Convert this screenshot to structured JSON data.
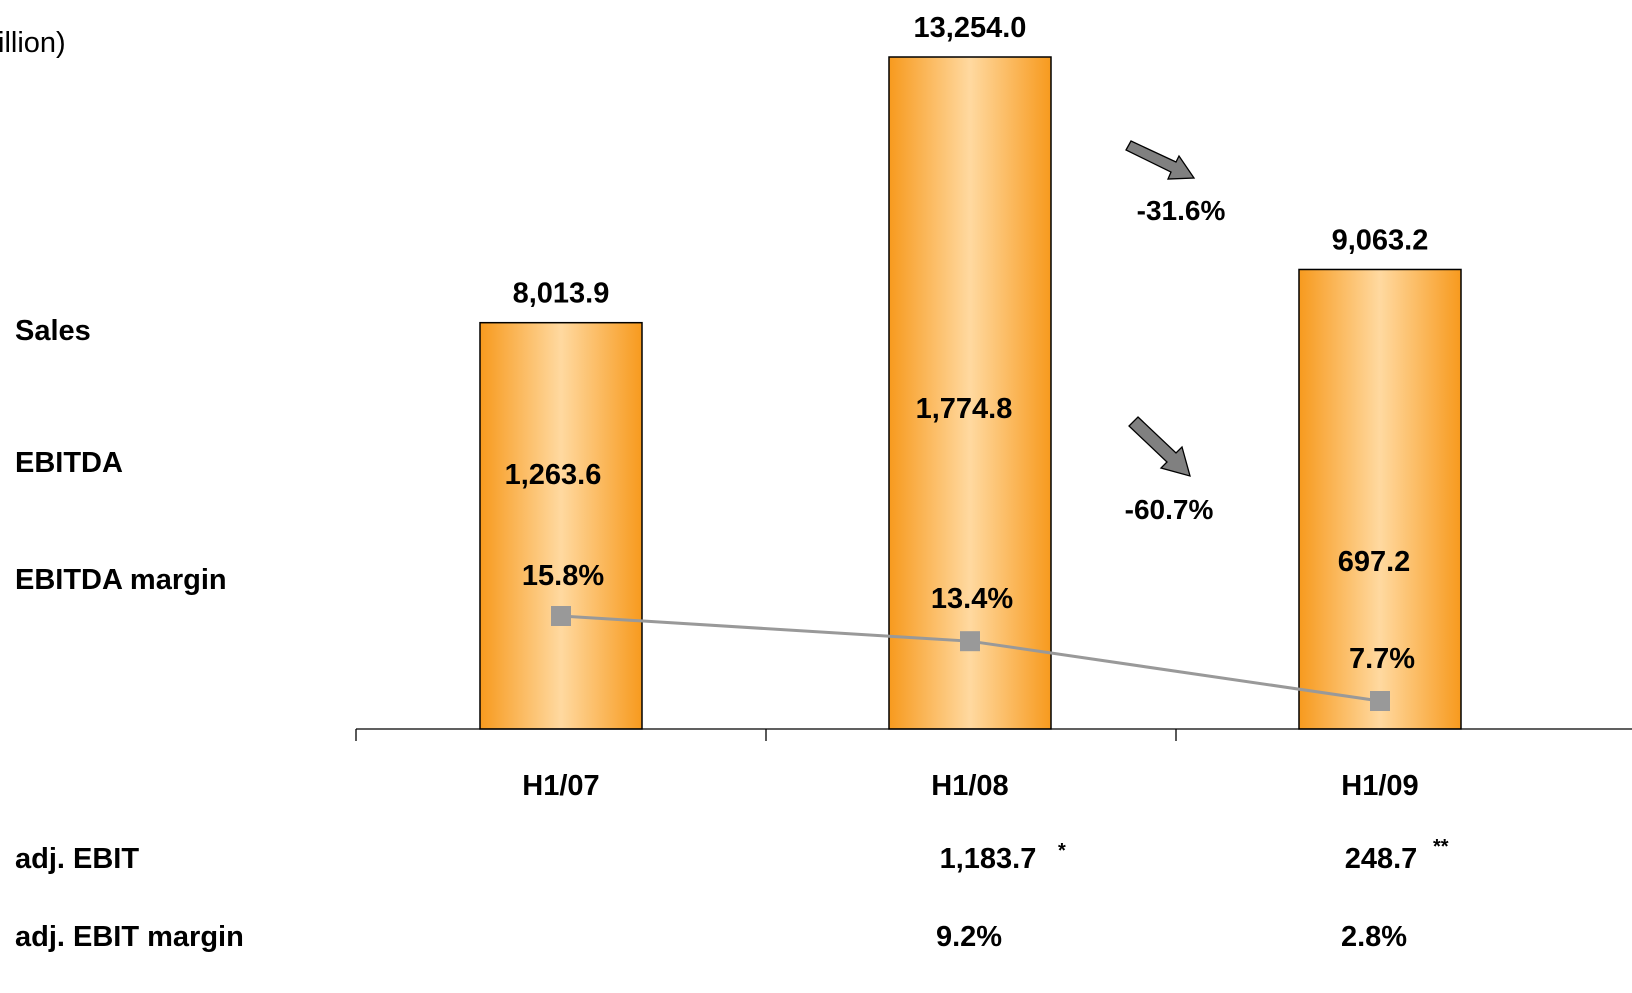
{
  "unit_label": "illion)",
  "row_labels": {
    "sales": "Sales",
    "ebitda": "EBITDA",
    "ebitda_margin": "EBITDA margin",
    "adj_ebit": "adj. EBIT",
    "adj_ebit_margin": "adj. EBIT margin"
  },
  "colors": {
    "bar_edge": "#f79a1e",
    "bar_center": "#ffd9a0",
    "bar_outline": "#000000",
    "margin_line": "#999999",
    "arrow_fill": "#808080"
  },
  "chart_data": {
    "type": "bar",
    "categories": [
      "H1/07",
      "H1/08",
      "H1/09"
    ],
    "series": [
      {
        "name": "Sales",
        "values": [
          8013.9,
          13254.0,
          9063.2
        ],
        "labels": [
          "8,013.9",
          "13,254.0",
          "9,063.2"
        ]
      },
      {
        "name": "EBITDA",
        "values": [
          1263.6,
          1774.8,
          697.2
        ],
        "labels": [
          "1,263.6",
          "1,774.8",
          "697.2"
        ]
      },
      {
        "name": "EBITDA margin",
        "type": "line",
        "values": [
          15.8,
          13.4,
          7.7
        ],
        "labels": [
          "15.8%",
          "13.4%",
          "7.7%"
        ]
      }
    ],
    "margin_ylim": [
      0,
      75
    ],
    "ylim": [
      0,
      13800
    ],
    "changes": [
      {
        "series": "Sales",
        "label": "-31.6%"
      },
      {
        "series": "EBITDA",
        "label": "-60.7%"
      }
    ],
    "adj_ebit": [
      {
        "category": "H1/08",
        "value": "1,183.7",
        "note": "*"
      },
      {
        "category": "H1/09",
        "value": "248.7",
        "note": "**"
      }
    ],
    "adj_ebit_margin": [
      {
        "category": "H1/08",
        "value": "9.2%"
      },
      {
        "category": "H1/09",
        "value": "2.8%"
      }
    ],
    "grid": false
  }
}
